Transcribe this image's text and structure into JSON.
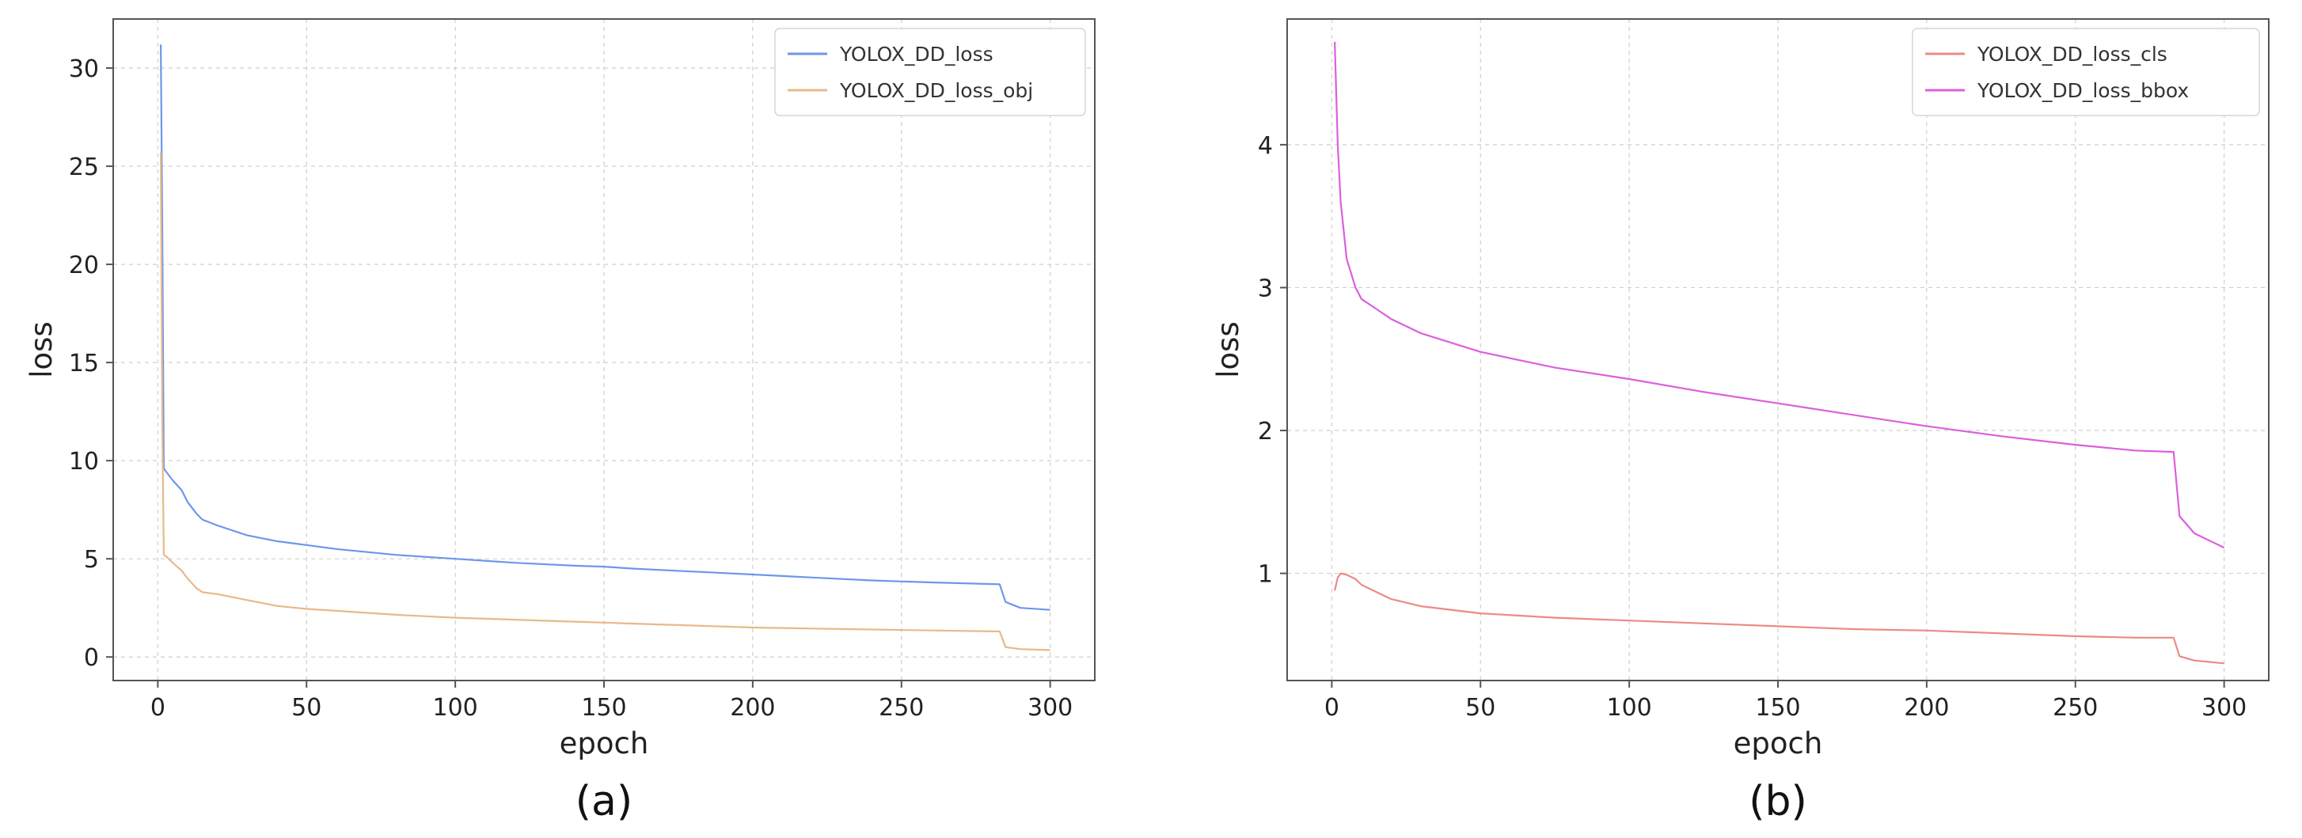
{
  "chart_data": [
    {
      "type": "line",
      "panel_label": "(a)",
      "xlabel": "epoch",
      "ylabel": "loss",
      "xlim": [
        -15,
        315
      ],
      "ylim": [
        -1.2,
        32.5
      ],
      "xticks": [
        0,
        50,
        100,
        150,
        200,
        250,
        300
      ],
      "yticks": [
        0,
        5,
        10,
        15,
        20,
        25,
        30
      ],
      "grid": true,
      "legend_position": "top-right",
      "series": [
        {
          "name": "YOLOX_DD_loss",
          "color": "#6d97ea",
          "x": [
            1,
            1.5,
            2,
            3,
            5,
            8,
            10,
            13,
            15,
            20,
            30,
            40,
            50,
            60,
            80,
            100,
            120,
            140,
            150,
            160,
            180,
            200,
            220,
            240,
            260,
            283,
            285,
            290,
            300
          ],
          "y": [
            31.2,
            22.0,
            9.6,
            9.4,
            9.0,
            8.5,
            7.9,
            7.3,
            7.0,
            6.7,
            6.2,
            5.9,
            5.7,
            5.5,
            5.2,
            5.0,
            4.8,
            4.65,
            4.6,
            4.5,
            4.35,
            4.2,
            4.05,
            3.9,
            3.8,
            3.7,
            2.8,
            2.5,
            2.4
          ]
        },
        {
          "name": "YOLOX_DD_loss_obj",
          "color": "#e8b98a",
          "x": [
            1,
            1.5,
            2,
            3,
            5,
            8,
            10,
            13,
            15,
            20,
            30,
            40,
            50,
            60,
            80,
            100,
            120,
            140,
            150,
            160,
            180,
            200,
            220,
            240,
            260,
            283,
            285,
            290,
            300
          ],
          "y": [
            25.7,
            12.0,
            5.2,
            5.1,
            4.8,
            4.4,
            4.0,
            3.5,
            3.3,
            3.2,
            2.9,
            2.6,
            2.45,
            2.35,
            2.15,
            2.0,
            1.9,
            1.8,
            1.75,
            1.7,
            1.6,
            1.5,
            1.45,
            1.4,
            1.35,
            1.3,
            0.5,
            0.4,
            0.35
          ]
        }
      ]
    },
    {
      "type": "line",
      "panel_label": "(b)",
      "xlabel": "epoch",
      "ylabel": "loss",
      "xlim": [
        -15,
        315
      ],
      "ylim": [
        0.25,
        4.88
      ],
      "xticks": [
        0,
        50,
        100,
        150,
        200,
        250,
        300
      ],
      "yticks": [
        1,
        2,
        3,
        4
      ],
      "grid": true,
      "legend_position": "top-right",
      "series": [
        {
          "name": "YOLOX_DD_loss_cls",
          "color": "#ec8a86",
          "x": [
            1,
            2,
            3,
            5,
            8,
            10,
            15,
            20,
            30,
            50,
            75,
            100,
            125,
            150,
            175,
            200,
            225,
            250,
            270,
            283,
            285,
            290,
            300
          ],
          "y": [
            0.88,
            0.97,
            1.0,
            0.99,
            0.96,
            0.92,
            0.87,
            0.82,
            0.77,
            0.72,
            0.69,
            0.67,
            0.65,
            0.63,
            0.61,
            0.6,
            0.58,
            0.56,
            0.55,
            0.55,
            0.42,
            0.39,
            0.37
          ]
        },
        {
          "name": "YOLOX_DD_loss_bbox",
          "color": "#dd5fdd",
          "x": [
            1,
            2,
            3,
            5,
            8,
            10,
            15,
            20,
            30,
            50,
            75,
            100,
            125,
            150,
            175,
            200,
            225,
            250,
            270,
            283,
            285,
            290,
            300
          ],
          "y": [
            4.72,
            4.0,
            3.6,
            3.2,
            3.0,
            2.92,
            2.85,
            2.78,
            2.68,
            2.55,
            2.44,
            2.36,
            2.27,
            2.19,
            2.11,
            2.03,
            1.96,
            1.9,
            1.86,
            1.85,
            1.4,
            1.28,
            1.18
          ]
        }
      ]
    }
  ]
}
